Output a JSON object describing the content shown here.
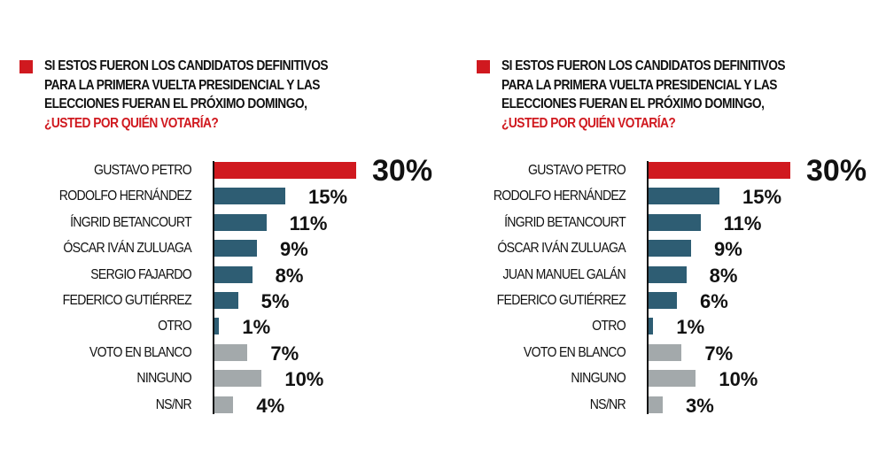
{
  "colors": {
    "highlight": "#d0191f",
    "candidate": "#2e5d73",
    "other": "#a3a9ab",
    "title_accent": "#d0191f"
  },
  "chart_data": [
    {
      "type": "bar",
      "orientation": "horizontal",
      "title": "SI ESTOS FUERON LOS CANDIDATOS DEFINITIVOS PARA LA PRIMERA VUELTA PRESIDENCIAL Y LAS ELECCIONES FUERAN EL PRÓXIMO DOMINGO,",
      "title_lines": [
        "SI ESTOS FUERON LOS CANDIDATOS DEFINITIVOS",
        "PARA LA PRIMERA VUELTA PRESIDENCIAL Y LAS",
        "ELECCIONES FUERAN EL PRÓXIMO DOMINGO,"
      ],
      "question": "¿USTED POR QUIÉN VOTARÍA?",
      "categories": [
        "GUSTAVO PETRO",
        "RODOLFO HERNÁNDEZ",
        "ÍNGRID BETANCOURT",
        "ÓSCAR IVÁN ZULUAGA",
        "SERGIO FAJARDO",
        "FEDERICO GUTIÉRREZ",
        "OTRO",
        "VOTO EN BLANCO",
        "NINGUNO",
        "NS/NR"
      ],
      "values": [
        30,
        15,
        11,
        9,
        8,
        5,
        1,
        7,
        10,
        4
      ],
      "value_labels": [
        "30%",
        "15%",
        "11%",
        "9%",
        "8%",
        "5%",
        "1%",
        "7%",
        "10%",
        "4%"
      ],
      "bar_colors": [
        "highlight",
        "candidate",
        "candidate",
        "candidate",
        "candidate",
        "candidate",
        "candidate",
        "other",
        "other",
        "other"
      ],
      "xlim": [
        0,
        30
      ],
      "grid": false
    },
    {
      "type": "bar",
      "orientation": "horizontal",
      "title": "SI ESTOS FUERON LOS CANDIDATOS DEFINITIVOS PARA LA PRIMERA VUELTA PRESIDENCIAL Y LAS ELECCIONES FUERAN EL PRÓXIMO DOMINGO,",
      "title_lines": [
        "SI ESTOS FUERON LOS CANDIDATOS DEFINITIVOS",
        "PARA LA PRIMERA VUELTA PRESIDENCIAL Y LAS",
        "ELECCIONES FUERAN EL PRÓXIMO DOMINGO,"
      ],
      "question": "¿USTED POR QUIÉN VOTARÍA?",
      "categories": [
        "GUSTAVO PETRO",
        "RODOLFO HERNÁNDEZ",
        "ÍNGRID BETANCOURT",
        "ÓSCAR IVÁN ZULUAGA",
        "JUAN MANUEL GALÁN",
        "FEDERICO GUTIÉRREZ",
        "OTRO",
        "VOTO EN BLANCO",
        "NINGUNO",
        "NS/NR"
      ],
      "values": [
        30,
        15,
        11,
        9,
        8,
        6,
        1,
        7,
        10,
        3
      ],
      "value_labels": [
        "30%",
        "15%",
        "11%",
        "9%",
        "8%",
        "6%",
        "1%",
        "7%",
        "10%",
        "3%"
      ],
      "bar_colors": [
        "highlight",
        "candidate",
        "candidate",
        "candidate",
        "candidate",
        "candidate",
        "candidate",
        "other",
        "other",
        "other"
      ],
      "xlim": [
        0,
        30
      ],
      "grid": false
    }
  ]
}
